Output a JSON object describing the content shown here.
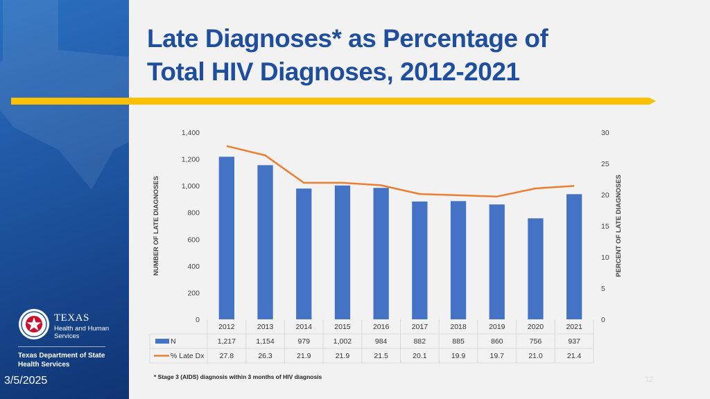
{
  "slide": {
    "title_line1": "Late Diagnoses* as Percentage of",
    "title_line2": "Total HIV Diagnoses, 2012-2021",
    "footnote": "* Stage 3 (AIDS) diagnosis within 3 months of HIV diagnosis",
    "date": "3/5/2025",
    "page_number": "12"
  },
  "logo": {
    "texas": "TEXAS",
    "line1": "Health and Human",
    "line2": "Services",
    "dept_line1": "Texas Department of State",
    "dept_line2": "Health Services"
  },
  "colors": {
    "bar": "#4472c4",
    "line": "#ed7d31",
    "title": "#1f4e9c",
    "accent": "#ffc000"
  },
  "chart_data": {
    "type": "bar",
    "categories": [
      "2012",
      "2013",
      "2014",
      "2015",
      "2016",
      "2017",
      "2018",
      "2019",
      "2020",
      "2021"
    ],
    "series": [
      {
        "name": "N",
        "type": "bar",
        "axis": "left",
        "values": [
          1217,
          1154,
          979,
          1002,
          984,
          882,
          885,
          860,
          756,
          937
        ],
        "labels": [
          "1,217",
          "1,154",
          "979",
          "1,002",
          "984",
          "882",
          "885",
          "860",
          "756",
          "937"
        ]
      },
      {
        "name": "% Late Dx",
        "type": "line",
        "axis": "right",
        "values": [
          27.8,
          26.3,
          21.9,
          21.9,
          21.5,
          20.1,
          19.9,
          19.7,
          21.0,
          21.4
        ],
        "labels": [
          "27.8",
          "26.3",
          "21.9",
          "21.9",
          "21.5",
          "20.1",
          "19.9",
          "19.7",
          "21.0",
          "21.4"
        ]
      }
    ],
    "ylabel": "NUMBER OF LATE DIAGNOSES",
    "y2label": "PERCENT OF LATE DIAGNOSES",
    "ylim": [
      0,
      1400
    ],
    "y2lim": [
      0,
      30
    ],
    "yticks": [
      0,
      200,
      400,
      600,
      800,
      1000,
      1200,
      1400
    ],
    "ytick_labels": [
      "0",
      "200",
      "400",
      "600",
      "800",
      "1,000",
      "1,200",
      "1,400"
    ],
    "y2ticks": [
      0,
      5,
      10,
      15,
      20,
      25,
      30
    ],
    "y2tick_labels": [
      "0",
      "5",
      "10",
      "15",
      "20",
      "25",
      "30"
    ],
    "data_table": true
  }
}
